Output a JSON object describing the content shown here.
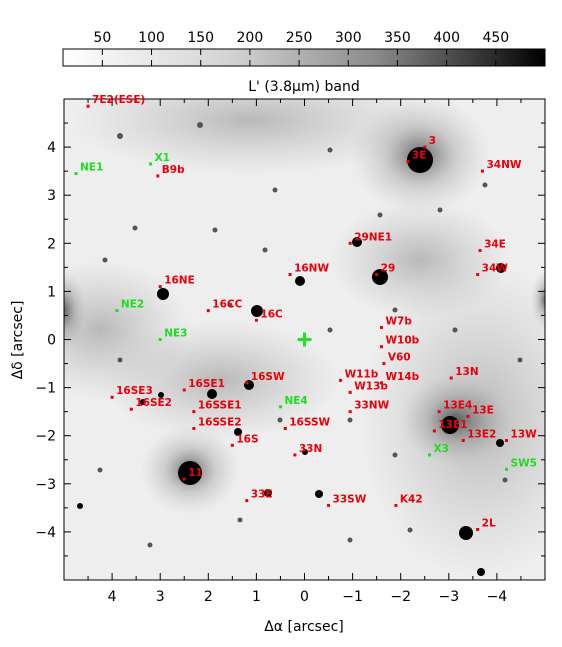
{
  "colorbar": {
    "ticks": [
      "50",
      "100",
      "150",
      "200",
      "250",
      "300",
      "350",
      "400",
      "450"
    ],
    "tick_values": [
      50,
      100,
      150,
      200,
      250,
      300,
      350,
      400,
      450
    ],
    "range": [
      10,
      500
    ],
    "label": "L' (3.8μm) band"
  },
  "axes": {
    "xlabel": "Δα [arcsec]",
    "ylabel": "Δδ [arcsec]",
    "xlim": [
      5,
      -5
    ],
    "ylim": [
      -5,
      5
    ],
    "xticks": [
      4,
      3,
      2,
      1,
      0,
      -1,
      -2,
      -3,
      -4
    ],
    "xtick_labels": [
      "4",
      "3",
      "2",
      "1",
      "0",
      "−1",
      "−2",
      "−3",
      "−4"
    ],
    "yticks": [
      4,
      3,
      2,
      1,
      0,
      -1,
      -2,
      -3,
      -4
    ],
    "ytick_labels": [
      "4",
      "3",
      "2",
      "1",
      "0",
      "−1",
      "−2",
      "−3",
      "−4"
    ]
  },
  "colors": {
    "red_labels": "#e8000b",
    "green_labels": "#1fdc1f",
    "marker": "#22e022"
  },
  "center_marker": {
    "x": 0,
    "y": 0,
    "symbol": "+"
  },
  "sources_red": [
    {
      "name": "7E2(ESE)",
      "x": 4.5,
      "y": 4.85
    },
    {
      "name": "3",
      "x": -2.5,
      "y": 4.0
    },
    {
      "name": "3E",
      "x": -2.15,
      "y": 3.7
    },
    {
      "name": "B9b",
      "x": 3.05,
      "y": 3.4
    },
    {
      "name": "34NW",
      "x": -3.7,
      "y": 3.5
    },
    {
      "name": "29NE1",
      "x": -0.95,
      "y": 2.0
    },
    {
      "name": "34E",
      "x": -3.65,
      "y": 1.85
    },
    {
      "name": "29",
      "x": -1.5,
      "y": 1.35
    },
    {
      "name": "34W",
      "x": -3.6,
      "y": 1.35
    },
    {
      "name": "16NW",
      "x": 0.3,
      "y": 1.35
    },
    {
      "name": "16NE",
      "x": 3.0,
      "y": 1.1
    },
    {
      "name": "16CC",
      "x": 2.0,
      "y": 0.6
    },
    {
      "name": "16C",
      "x": 1.0,
      "y": 0.4
    },
    {
      "name": "W7b",
      "x": -1.6,
      "y": 0.25
    },
    {
      "name": "W10b",
      "x": -1.6,
      "y": -0.15
    },
    {
      "name": "V60",
      "x": -1.65,
      "y": -0.5
    },
    {
      "name": "W14b",
      "x": -1.6,
      "y": -0.9
    },
    {
      "name": "13N",
      "x": -3.05,
      "y": -0.8
    },
    {
      "name": "W11b",
      "x": -0.75,
      "y": -0.85
    },
    {
      "name": "W13b",
      "x": -0.95,
      "y": -1.1
    },
    {
      "name": "16SW",
      "x": 1.2,
      "y": -0.9
    },
    {
      "name": "16SE1",
      "x": 2.5,
      "y": -1.05
    },
    {
      "name": "16SE3",
      "x": 4.0,
      "y": -1.2
    },
    {
      "name": "16SE2",
      "x": 3.6,
      "y": -1.45
    },
    {
      "name": "16SSE1",
      "x": 2.3,
      "y": -1.5
    },
    {
      "name": "16SSE2",
      "x": 2.3,
      "y": -1.85
    },
    {
      "name": "16SSW",
      "x": 0.4,
      "y": -1.85
    },
    {
      "name": "16S",
      "x": 1.5,
      "y": -2.2
    },
    {
      "name": "33NW",
      "x": -0.95,
      "y": -1.5
    },
    {
      "name": "13E4",
      "x": -2.8,
      "y": -1.5
    },
    {
      "name": "13E",
      "x": -3.4,
      "y": -1.6
    },
    {
      "name": "13E1",
      "x": -2.7,
      "y": -1.9
    },
    {
      "name": "13E2",
      "x": -3.3,
      "y": -2.1
    },
    {
      "name": "13W",
      "x": -4.2,
      "y": -2.1
    },
    {
      "name": "33N",
      "x": 0.2,
      "y": -2.4
    },
    {
      "name": "11",
      "x": 2.5,
      "y": -2.9
    },
    {
      "name": "33E",
      "x": 1.2,
      "y": -3.35
    },
    {
      "name": "33SW",
      "x": -0.5,
      "y": -3.45
    },
    {
      "name": "K42",
      "x": -1.9,
      "y": -3.45
    },
    {
      "name": "2L",
      "x": -3.6,
      "y": -3.95
    }
  ],
  "sources_green": [
    {
      "name": "X1",
      "x": 3.2,
      "y": 3.65
    },
    {
      "name": "NE1",
      "x": 4.75,
      "y": 3.45
    },
    {
      "name": "NE2",
      "x": 3.9,
      "y": 0.6
    },
    {
      "name": "NE3",
      "x": 3.0,
      "y": 0.0
    },
    {
      "name": "NE4",
      "x": 0.5,
      "y": -1.4
    },
    {
      "name": "X3",
      "x": -2.6,
      "y": -2.4
    },
    {
      "name": "SW5",
      "x": -4.2,
      "y": -2.7
    }
  ]
}
